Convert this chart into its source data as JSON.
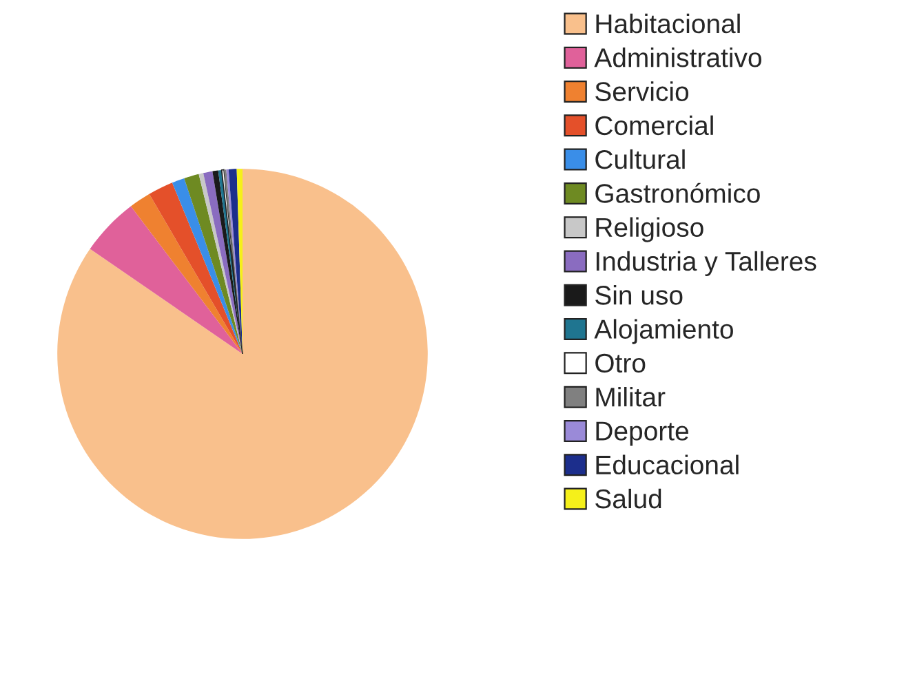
{
  "chart_data": {
    "type": "pie",
    "categories": [
      "Habitacional",
      "Administrativo",
      "Servicio",
      "Comercial",
      "Cultural",
      "Gastronómico",
      "Religioso",
      "Industria y Talleres",
      "Sin uso",
      "Alojamiento",
      "Otro",
      "Militar",
      "Deporte",
      "Educacional",
      "Salud"
    ],
    "values": [
      84.6,
      5.1,
      1.9,
      2.2,
      1.1,
      1.3,
      0.4,
      0.8,
      0.5,
      0.3,
      0.2,
      0.2,
      0.2,
      0.7,
      0.5
    ],
    "colors": [
      "#f9c08c",
      "#e0619a",
      "#ef8130",
      "#e4502a",
      "#3a8ee8",
      "#6e8a22",
      "#c8c8c8",
      "#8a6cc0",
      "#1a1a1a",
      "#1f7590",
      "#ffffff",
      "#808080",
      "#9a8ad8",
      "#1c2e8c",
      "#f5f01a"
    ],
    "legend": "right"
  }
}
